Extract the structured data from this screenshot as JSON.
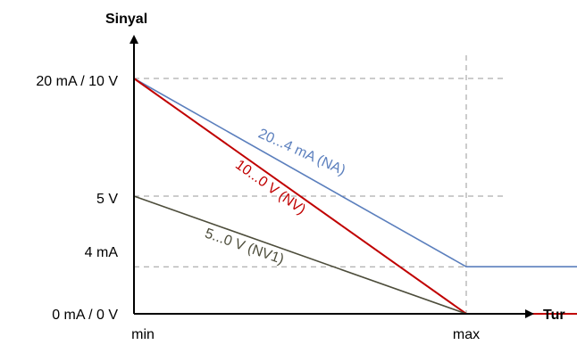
{
  "chart_data": {
    "type": "line",
    "title": "",
    "ylabel": "Sinyal",
    "xlabel": "Tur",
    "x_ticks": [
      "min",
      "max"
    ],
    "y_ticks": [
      "0 mA / 0 V",
      "4 mA",
      "5 V",
      "20 mA / 10 V"
    ],
    "y_tick_levels": [
      0,
      0.2,
      0.5,
      1
    ],
    "xlim": [
      0,
      1
    ],
    "ylim": [
      0,
      1
    ],
    "grid": "dashed reference lines at labeled levels and at max",
    "series": [
      {
        "name": "20...4 mA (NA)",
        "color": "#5b7fbd",
        "x": [
          0,
          1,
          1.34
        ],
        "y": [
          1,
          0.2,
          0.2
        ]
      },
      {
        "name": "10...0 V (NV)",
        "color": "#c00000",
        "x": [
          0,
          1,
          1.34
        ],
        "y": [
          1,
          0,
          0
        ]
      },
      {
        "name": "5...0 V (NV1)",
        "color": "#4d4d3b",
        "x": [
          0,
          1
        ],
        "y": [
          0.5,
          0
        ]
      }
    ]
  }
}
